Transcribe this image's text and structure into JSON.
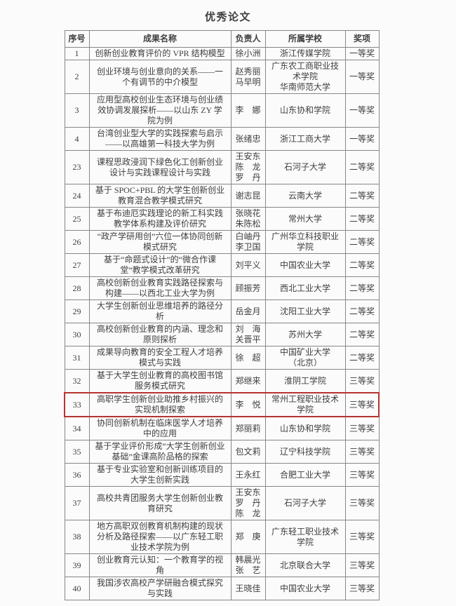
{
  "page": {
    "title": "优秀论文"
  },
  "highlight_color": "#b5352f",
  "table": {
    "columns": [
      "序号",
      "成果名称",
      "负责人",
      "所属学校",
      "奖项"
    ],
    "rows": [
      {
        "no": "1",
        "name": "创新创业教育评价的 VPR 结构模型",
        "leaders": [
          "徐小洲"
        ],
        "schools": [
          "浙江传媒学院"
        ],
        "award": "一等奖",
        "highlight": false
      },
      {
        "no": "2",
        "name": "创业环境与创业意向的关系——一个有调节的中介模型",
        "leaders": [
          "赵秀丽",
          "马早明"
        ],
        "schools": [
          "广东农工商职业技术学院",
          "华南师范大学"
        ],
        "award": "一等奖",
        "highlight": false
      },
      {
        "no": "3",
        "name": "应用型高校创业生态环境与创业绩效协调发展探析——以山东 ZY 学院为例",
        "leaders": [
          "李　娜"
        ],
        "schools": [
          "山东协和学院"
        ],
        "award": "一等奖",
        "highlight": false
      },
      {
        "no": "4",
        "name": "台湾创业型大学的实践探索与启示——以高雄第一科技大学为例",
        "leaders": [
          "张绪忠"
        ],
        "schools": [
          "浙江工商大学"
        ],
        "award": "一等奖",
        "highlight": false
      },
      {
        "no": "23",
        "name": "课程思政浸润下绿色化工创新创业设计与实践课程设计与实践",
        "leaders": [
          "王安东",
          "陈　龙",
          "罗　丹"
        ],
        "schools": [
          "石河子大学"
        ],
        "award": "二等奖",
        "highlight": false
      },
      {
        "no": "24",
        "name": "基于 SPOC+PBL 的大学生创新创业教育混合教学模式研究",
        "leaders": [
          "谢志昆"
        ],
        "schools": [
          "云南大学"
        ],
        "award": "二等奖",
        "highlight": false
      },
      {
        "no": "25",
        "name": "基于布迪厄实践理论的新工科实践教学体系构建及评价研究",
        "leaders": [
          "张晓花",
          "朱陈松"
        ],
        "schools": [
          "常州大学"
        ],
        "award": "二等奖",
        "highlight": false
      },
      {
        "no": "26",
        "name": "“政产学研用创”六位一体协同创新模式研究",
        "leaders": [
          "白岫丹",
          "李卫国"
        ],
        "schools": [
          "广州华立科技职业学院"
        ],
        "award": "二等奖",
        "highlight": false
      },
      {
        "no": "27",
        "name": "基于“命题式设计”的“微合作课堂”教学模式改革研究",
        "leaders": [
          "刘平义"
        ],
        "schools": [
          "中国农业大学"
        ],
        "award": "二等奖",
        "highlight": false
      },
      {
        "no": "28",
        "name": "高校创新创业教育实践路径探索与构建——以西北工业大学为例",
        "leaders": [
          "顾振芳"
        ],
        "schools": [
          "西北工业大学"
        ],
        "award": "二等奖",
        "highlight": false
      },
      {
        "no": "29",
        "name": "大学生创新创业思维培养的路径分析",
        "leaders": [
          "岳金月"
        ],
        "schools": [
          "沈阳工业大学"
        ],
        "award": "二等奖",
        "highlight": false
      },
      {
        "no": "30",
        "name": "高校创新创业教育的内涵、理念和原则探析",
        "leaders": [
          "刘　海",
          "关晋平"
        ],
        "schools": [
          "苏州大学"
        ],
        "award": "二等奖",
        "highlight": false
      },
      {
        "no": "31",
        "name": "成果导向教育的安全工程人才培养模式与实践",
        "leaders": [
          "徐　超"
        ],
        "schools": [
          "中国矿业大学",
          "（北京）"
        ],
        "award": "二等奖",
        "highlight": false
      },
      {
        "no": "32",
        "name": "基于大学生创业教育的高校图书馆服务模式研究",
        "leaders": [
          "郑继来"
        ],
        "schools": [
          "淮阴工学院"
        ],
        "award": "三等奖",
        "highlight": false
      },
      {
        "no": "33",
        "name": "高职学生创新创业助推乡村振兴的实现机制探索",
        "leaders": [
          "李　悦"
        ],
        "schools": [
          "常州工程职业技术学院"
        ],
        "award": "三等奖",
        "highlight": true
      },
      {
        "no": "34",
        "name": "协同创新机制在临床医学人才培养中的应用",
        "leaders": [
          "郑丽莉"
        ],
        "schools": [
          "山东协和学院"
        ],
        "award": "三等奖",
        "highlight": false
      },
      {
        "no": "35",
        "name": "基于学业评价形成“大学生创新创业基础”金课高阶品格的探索",
        "leaders": [
          "包文莉"
        ],
        "schools": [
          "辽宁科技学院"
        ],
        "award": "三等奖",
        "highlight": false
      },
      {
        "no": "36",
        "name": "基于专业实验室和创新训练项目的大学生创新实践",
        "leaders": [
          "王永红"
        ],
        "schools": [
          "合肥工业大学"
        ],
        "award": "三等奖",
        "highlight": false
      },
      {
        "no": "37",
        "name": "高校共青团服务大学生创新创业教育研究",
        "leaders": [
          "王安东",
          "罗　丹",
          "陈　龙"
        ],
        "schools": [
          "石河子大学"
        ],
        "award": "三等奖",
        "highlight": false
      },
      {
        "no": "38",
        "name": "地方高职双创教育机制构建的现状分析及路径探索——以广东轻工职业技术学院为例",
        "leaders": [
          "郑　庚"
        ],
        "schools": [
          "广东轻工职业技术学院"
        ],
        "award": "三等奖",
        "highlight": false
      },
      {
        "no": "39",
        "name": "创业教育元认知：一个教育学的视角",
        "leaders": [
          "韩晨光",
          "张　艺"
        ],
        "schools": [
          "北京联合大学"
        ],
        "award": "三等奖",
        "highlight": false
      },
      {
        "no": "40",
        "name": "我国涉农高校产学研融合模式探究与实践",
        "leaders": [
          "王晓佳"
        ],
        "schools": [
          "中国农业大学"
        ],
        "award": "三等奖",
        "highlight": false
      }
    ]
  }
}
